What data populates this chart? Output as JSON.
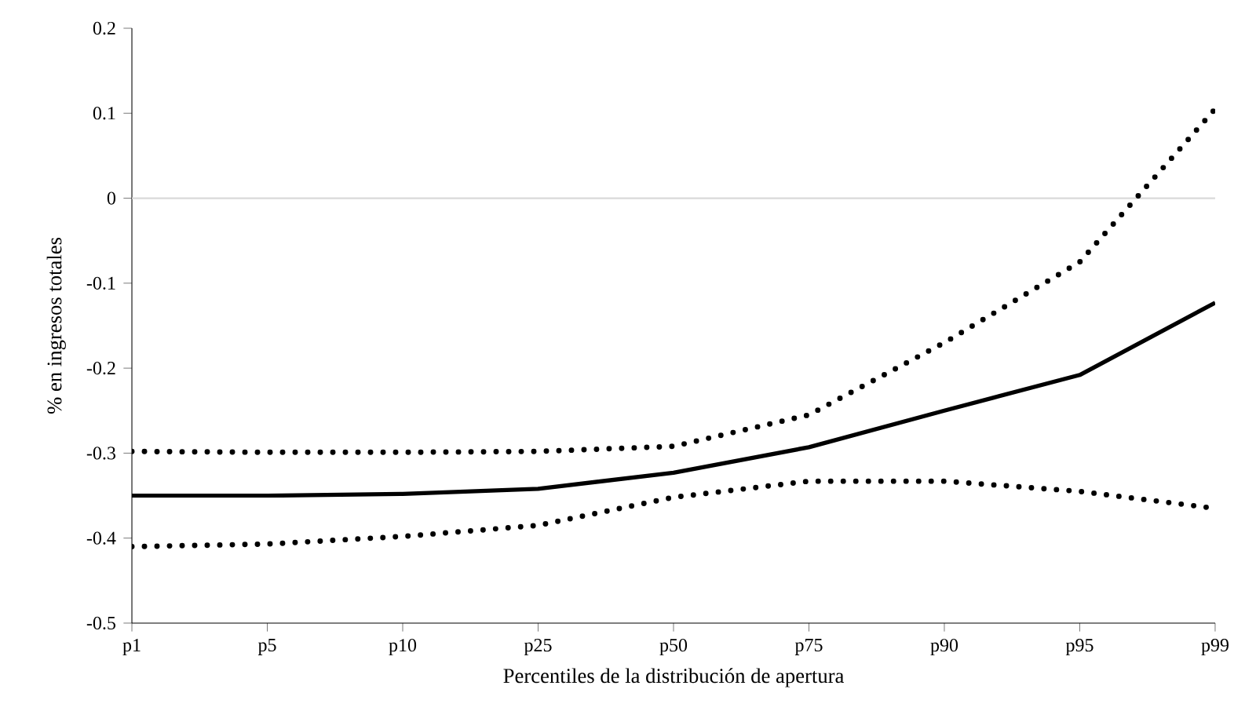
{
  "chart_data": {
    "type": "line",
    "xlabel": "Percentiles de la distribución de apertura",
    "ylabel": "% en ingresos totales",
    "categories": [
      "p1",
      "p5",
      "p10",
      "p25",
      "p50",
      "p75",
      "p90",
      "p95",
      "p99"
    ],
    "series": [
      {
        "color": "#000000",
        "line_style": "solid",
        "values": [
          -0.35,
          -0.35,
          -0.348,
          -0.342,
          -0.323,
          -0.293,
          -0.25,
          -0.208,
          -0.123
        ]
      },
      {
        "color": "#000000",
        "line_style": "dotted",
        "values": [
          -0.298,
          -0.299,
          -0.299,
          -0.298,
          -0.292,
          -0.255,
          -0.17,
          -0.075,
          0.105
        ]
      },
      {
        "color": "#000000",
        "line_style": "dotted",
        "values": [
          -0.41,
          -0.407,
          -0.398,
          -0.385,
          -0.352,
          -0.333,
          -0.333,
          -0.345,
          -0.365
        ]
      }
    ],
    "ylim": [
      -0.5,
      0.2
    ],
    "yticks": [
      -0.5,
      -0.4,
      -0.3,
      -0.2,
      -0.1,
      0,
      0.1,
      0.2
    ],
    "ref_lines": [
      {
        "axis": "y",
        "value": 0,
        "color": "#d9d9d9"
      }
    ],
    "marker": "none"
  }
}
